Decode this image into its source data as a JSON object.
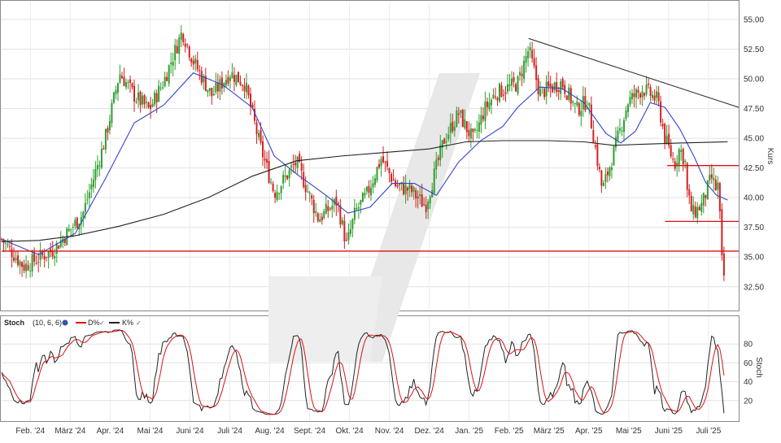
{
  "chart_data": [
    {
      "type": "candlestick",
      "ylabel": "Kurs",
      "ylim": [
        30.5,
        56.5
      ],
      "y_ticks": [
        "55.00",
        "52.50",
        "50.00",
        "47.50",
        "45.00",
        "42.50",
        "40.00",
        "37.50",
        "35.00",
        "32.50"
      ],
      "x_ticks": [
        "Feb. '24",
        "März '24",
        "Apr. '24",
        "Mai '24",
        "Juni '24",
        "Juli '24",
        "Aug. '24",
        "Sept. '24",
        "Okt. '24",
        "Nov. '24",
        "Dez. '24",
        "Jan. '25",
        "Feb. '25",
        "März '25",
        "Apr. '25",
        "Mai '25",
        "Juni '25",
        "Juli '25"
      ],
      "grid": true,
      "colors": {
        "up": "#2e9e2e",
        "down": "#d42020",
        "ma_short": "#3344cc",
        "ma_long": "#222222",
        "support_line": "#dd1111",
        "trend_line": "#333333",
        "watermark": "#e6e6e6"
      },
      "price_path": [
        [
          0,
          36.5
        ],
        [
          0.03,
          34.2
        ],
        [
          0.07,
          35.6
        ],
        [
          0.11,
          38.6
        ],
        [
          0.14,
          44.8
        ],
        [
          0.16,
          50.5
        ],
        [
          0.18,
          48.6
        ],
        [
          0.2,
          47.4
        ],
        [
          0.22,
          49.8
        ],
        [
          0.245,
          54.0
        ],
        [
          0.26,
          51.5
        ],
        [
          0.285,
          48.6
        ],
        [
          0.31,
          50.5
        ],
        [
          0.33,
          49.6
        ],
        [
          0.35,
          44.5
        ],
        [
          0.37,
          40.4
        ],
        [
          0.4,
          43.0
        ],
        [
          0.43,
          38.2
        ],
        [
          0.455,
          39.7
        ],
        [
          0.468,
          36.0
        ],
        [
          0.48,
          38.8
        ],
        [
          0.495,
          40.2
        ],
        [
          0.515,
          43.3
        ],
        [
          0.535,
          41.0
        ],
        [
          0.555,
          40.6
        ],
        [
          0.575,
          39.3
        ],
        [
          0.6,
          44.8
        ],
        [
          0.62,
          47.1
        ],
        [
          0.64,
          44.8
        ],
        [
          0.655,
          47.4
        ],
        [
          0.67,
          48.8
        ],
        [
          0.7,
          49.6
        ],
        [
          0.715,
          52.5
        ],
        [
          0.73,
          48.8
        ],
        [
          0.76,
          49.7
        ],
        [
          0.78,
          47.4
        ],
        [
          0.795,
          48.2
        ],
        [
          0.815,
          40.6
        ],
        [
          0.83,
          43.7
        ],
        [
          0.85,
          48.1
        ],
        [
          0.87,
          49.2
        ],
        [
          0.89,
          48.2
        ],
        [
          0.9,
          45.0
        ],
        [
          0.913,
          42.8
        ],
        [
          0.92,
          44.2
        ],
        [
          0.93,
          42.5
        ],
        [
          0.93,
          40.5
        ],
        [
          0.937,
          38.6
        ],
        [
          0.95,
          39.4
        ],
        [
          0.963,
          41.7
        ],
        [
          0.97,
          40.6
        ],
        [
          0.973,
          41.3
        ],
        [
          0.976,
          35.2
        ],
        [
          0.978,
          34.2
        ],
        [
          0.98,
          33.4
        ]
      ],
      "moving_averages": [
        {
          "name": "short",
          "points": [
            [
              0,
              36.5
            ],
            [
              0.05,
              35.2
            ],
            [
              0.1,
              37.0
            ],
            [
              0.14,
              41.5
            ],
            [
              0.18,
              46.3
            ],
            [
              0.22,
              47.8
            ],
            [
              0.26,
              50.5
            ],
            [
              0.3,
              49.5
            ],
            [
              0.34,
              47.6
            ],
            [
              0.37,
              43.5
            ],
            [
              0.4,
              42.0
            ],
            [
              0.44,
              40.2
            ],
            [
              0.47,
              38.7
            ],
            [
              0.5,
              39.2
            ],
            [
              0.53,
              41.2
            ],
            [
              0.56,
              41.2
            ],
            [
              0.59,
              40.2
            ],
            [
              0.62,
              43.0
            ],
            [
              0.65,
              44.8
            ],
            [
              0.68,
              46.0
            ],
            [
              0.7,
              47.6
            ],
            [
              0.73,
              49.3
            ],
            [
              0.76,
              49.2
            ],
            [
              0.79,
              48.0
            ],
            [
              0.82,
              45.4
            ],
            [
              0.84,
              44.6
            ],
            [
              0.86,
              45.6
            ],
            [
              0.88,
              48.0
            ],
            [
              0.9,
              47.6
            ],
            [
              0.92,
              45.8
            ],
            [
              0.94,
              43.4
            ],
            [
              0.955,
              41.3
            ],
            [
              0.97,
              40.2
            ],
            [
              0.985,
              39.8
            ]
          ]
        },
        {
          "name": "long",
          "points": [
            [
              0,
              36.3
            ],
            [
              0.05,
              36.4
            ],
            [
              0.1,
              36.8
            ],
            [
              0.16,
              37.6
            ],
            [
              0.22,
              38.6
            ],
            [
              0.28,
              40.0
            ],
            [
              0.34,
              41.8
            ],
            [
              0.4,
              43.1
            ],
            [
              0.46,
              43.5
            ],
            [
              0.52,
              43.8
            ],
            [
              0.58,
              44.1
            ],
            [
              0.63,
              44.7
            ],
            [
              0.68,
              44.8
            ],
            [
              0.74,
              44.8
            ],
            [
              0.79,
              44.7
            ],
            [
              0.83,
              44.4
            ],
            [
              0.87,
              44.5
            ],
            [
              0.92,
              44.6
            ],
            [
              0.985,
              44.7
            ]
          ]
        }
      ],
      "horizontal_lines": [
        {
          "y": 35.5,
          "x_start": 0,
          "x_end": 1
        },
        {
          "y": 42.7,
          "x_start": 0.903,
          "x_end": 1
        },
        {
          "y": 38.0,
          "x_start": 0.9,
          "x_end": 1
        }
      ],
      "trend_line": {
        "from": [
          0.715,
          53.4
        ],
        "to": [
          1.0,
          47.6
        ]
      }
    },
    {
      "type": "line",
      "title": "Stoch",
      "params": "(10, 6, 6)",
      "ylabel": "Stoch",
      "ylim": [
        0,
        100
      ],
      "y_ticks": [
        "80",
        "60",
        "40",
        "20"
      ],
      "grid": true,
      "series": [
        {
          "name": "D%",
          "color": "#dd1111",
          "phase": 0.6,
          "smooth": 1
        },
        {
          "name": "K%",
          "color": "#222222",
          "phase": 0,
          "smooth": 0
        }
      ]
    }
  ],
  "legend": {
    "d_label": "D%",
    "k_label": "K%"
  }
}
